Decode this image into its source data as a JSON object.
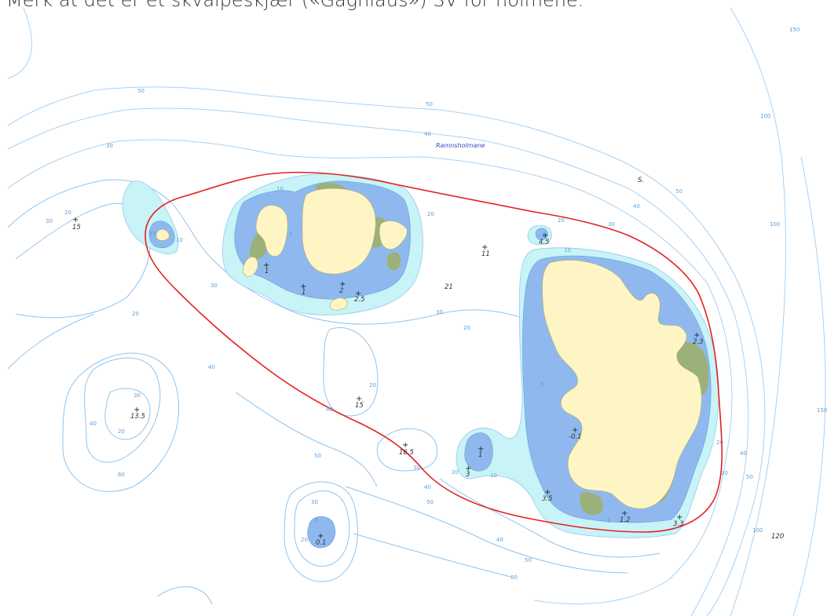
{
  "caption": "Merk at det er et skvalpeskjær («Gagnlaus») SV for holmene.",
  "place_name": "Ramnsholmane",
  "cross_symbol": "+",
  "colors": {
    "land": "#fdf6c4",
    "vegetation": "#9cb07a",
    "shallow": "#8fb9ee",
    "mid_shallow": "#c8f3f7",
    "contour": "#8fc3ee",
    "boundary": "#e22222",
    "place_label": "#3a47c6"
  },
  "contour_labels": [
    "50",
    "50",
    "40",
    "30",
    "30",
    "20",
    "20",
    "20",
    "10",
    "10",
    "5",
    "5",
    "5",
    "10",
    "20",
    "30",
    "40",
    "50",
    "20",
    "30",
    "40",
    "50",
    "100",
    "100",
    "150",
    "150",
    "20",
    "30",
    "40",
    "50",
    "60",
    "30",
    "20",
    "40",
    "40",
    "10",
    "20",
    "30",
    "40",
    "50",
    "60",
    "100",
    "10",
    "5",
    "3",
    "20",
    "30",
    "40",
    "50",
    "20",
    "30"
  ],
  "soundings": [
    "15",
    "1",
    "1",
    "2",
    "2.5",
    "11",
    "4.5",
    "21",
    "2.3",
    "13.5",
    "15",
    "16.5",
    "1",
    "3",
    "-0.1",
    "3.5",
    "1.2",
    "3.3",
    "0.1",
    "120",
    "S."
  ],
  "legend": {}
}
